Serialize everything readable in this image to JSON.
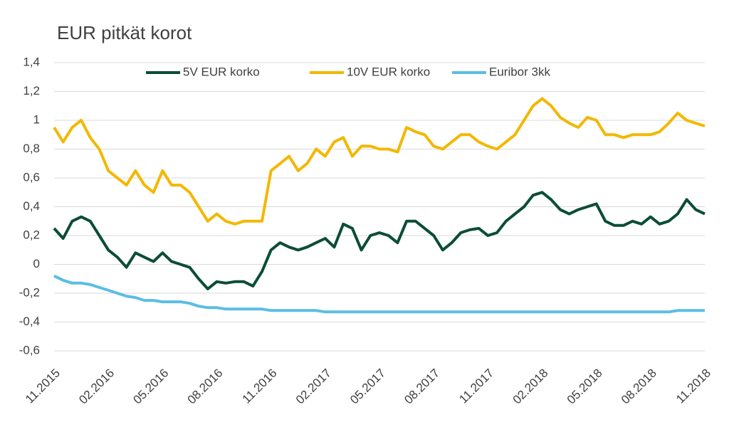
{
  "chart_data": {
    "type": "line",
    "title": "EUR pitkät korot",
    "categories": [
      "11.2015",
      null,
      null,
      null,
      null,
      null,
      "02.2016",
      null,
      null,
      null,
      null,
      null,
      "05.2016",
      null,
      null,
      null,
      null,
      null,
      "08.2016",
      null,
      null,
      null,
      null,
      null,
      "11.2016",
      null,
      null,
      null,
      null,
      null,
      "02.2017",
      null,
      null,
      null,
      null,
      null,
      "05.2017",
      null,
      null,
      null,
      null,
      null,
      "08.2017",
      null,
      null,
      null,
      null,
      null,
      "11.2017",
      null,
      null,
      null,
      null,
      null,
      "02.2018",
      null,
      null,
      null,
      null,
      null,
      "05.2018",
      null,
      null,
      null,
      null,
      null,
      "08.2018",
      null,
      null,
      null,
      null,
      null,
      "11.2018"
    ],
    "series": [
      {
        "name": "5V EUR korko",
        "color": "#0b4d36",
        "values": [
          0.25,
          0.18,
          0.3,
          0.33,
          0.3,
          0.2,
          0.1,
          0.05,
          -0.02,
          0.08,
          0.05,
          0.02,
          0.08,
          0.02,
          0.0,
          -0.02,
          -0.1,
          -0.17,
          -0.12,
          -0.13,
          -0.12,
          -0.12,
          -0.15,
          -0.05,
          0.1,
          0.15,
          0.12,
          0.1,
          0.12,
          0.15,
          0.18,
          0.12,
          0.28,
          0.25,
          0.1,
          0.2,
          0.22,
          0.2,
          0.15,
          0.3,
          0.3,
          0.25,
          0.2,
          0.1,
          0.15,
          0.22,
          0.24,
          0.25,
          0.2,
          0.22,
          0.3,
          0.35,
          0.4,
          0.48,
          0.5,
          0.45,
          0.38,
          0.35,
          0.38,
          0.4,
          0.42,
          0.3,
          0.27,
          0.27,
          0.3,
          0.28,
          0.33,
          0.28,
          0.3,
          0.35,
          0.45,
          0.38,
          0.35
        ]
      },
      {
        "name": "10V EUR korko",
        "color": "#f2b800",
        "values": [
          0.95,
          0.85,
          0.95,
          1.0,
          0.88,
          0.8,
          0.65,
          0.6,
          0.55,
          0.65,
          0.55,
          0.5,
          0.65,
          0.55,
          0.55,
          0.5,
          0.4,
          0.3,
          0.35,
          0.3,
          0.28,
          0.3,
          0.3,
          0.3,
          0.65,
          0.7,
          0.75,
          0.65,
          0.7,
          0.8,
          0.75,
          0.85,
          0.88,
          0.75,
          0.82,
          0.82,
          0.8,
          0.8,
          0.78,
          0.95,
          0.92,
          0.9,
          0.82,
          0.8,
          0.85,
          0.9,
          0.9,
          0.85,
          0.82,
          0.8,
          0.85,
          0.9,
          1.0,
          1.1,
          1.15,
          1.1,
          1.02,
          0.98,
          0.95,
          1.02,
          1.0,
          0.9,
          0.9,
          0.88,
          0.9,
          0.9,
          0.9,
          0.92,
          0.98,
          1.05,
          1.0,
          0.98,
          0.96
        ]
      },
      {
        "name": "Euribor 3kk",
        "color": "#5bbde4",
        "values": [
          -0.08,
          -0.11,
          -0.13,
          -0.13,
          -0.14,
          -0.16,
          -0.18,
          -0.2,
          -0.22,
          -0.23,
          -0.25,
          -0.25,
          -0.26,
          -0.26,
          -0.26,
          -0.27,
          -0.29,
          -0.3,
          -0.3,
          -0.31,
          -0.31,
          -0.31,
          -0.31,
          -0.31,
          -0.32,
          -0.32,
          -0.32,
          -0.32,
          -0.32,
          -0.32,
          -0.33,
          -0.33,
          -0.33,
          -0.33,
          -0.33,
          -0.33,
          -0.33,
          -0.33,
          -0.33,
          -0.33,
          -0.33,
          -0.33,
          -0.33,
          -0.33,
          -0.33,
          -0.33,
          -0.33,
          -0.33,
          -0.33,
          -0.33,
          -0.33,
          -0.33,
          -0.33,
          -0.33,
          -0.33,
          -0.33,
          -0.33,
          -0.33,
          -0.33,
          -0.33,
          -0.33,
          -0.33,
          -0.33,
          -0.33,
          -0.33,
          -0.33,
          -0.33,
          -0.33,
          -0.33,
          -0.32,
          -0.32,
          -0.32,
          -0.32
        ]
      }
    ],
    "ylim": [
      -0.6,
      1.4
    ],
    "yticks": [
      {
        "value": -0.6,
        "label": "-0,6"
      },
      {
        "value": -0.4,
        "label": "-0,4"
      },
      {
        "value": -0.2,
        "label": "-0,2"
      },
      0,
      {
        "value": 0.2,
        "label": "0,2"
      },
      {
        "value": 0.4,
        "label": "0,4"
      },
      {
        "value": 0.6,
        "label": "0,6"
      },
      {
        "value": 0.8,
        "label": "0,8"
      },
      {
        "value": 1,
        "label": "1"
      },
      {
        "value": 1.2,
        "label": "1,2"
      },
      {
        "value": 1.4,
        "label": "1,4"
      }
    ],
    "grid": true,
    "legend": "top"
  }
}
